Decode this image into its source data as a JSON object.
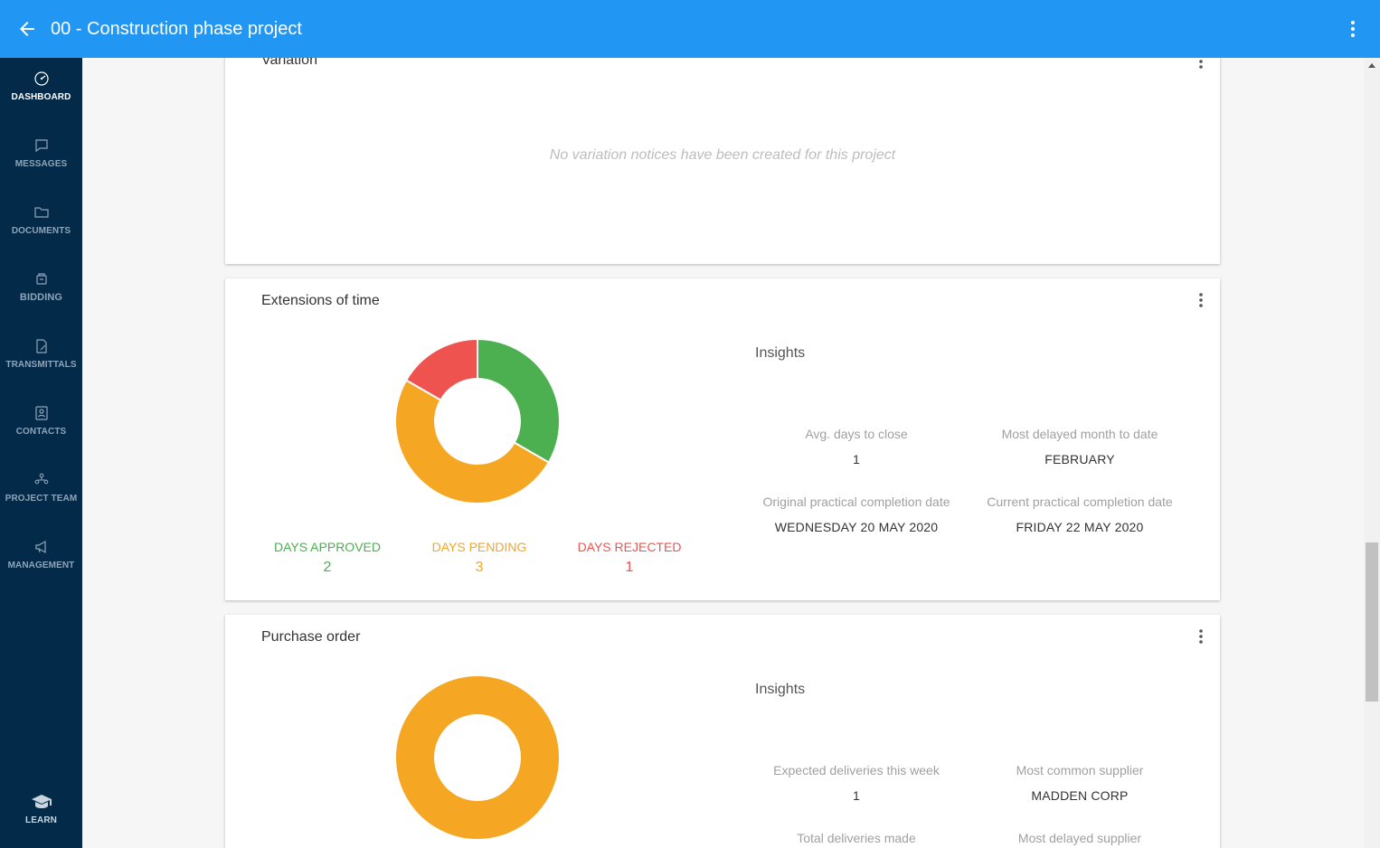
{
  "header": {
    "title": "00 - Construction phase project"
  },
  "colors": {
    "primary": "#2196f3",
    "sidebar": "#042a49",
    "approved": "#4caf50",
    "pending": "#f5a623",
    "rejected": "#ef5350"
  },
  "sidebar": {
    "items": [
      {
        "label": "DASHBOARD",
        "icon": "dashboard-gauge-icon"
      },
      {
        "label": "MESSAGES",
        "icon": "message-icon"
      },
      {
        "label": "DOCUMENTS",
        "icon": "folder-icon"
      },
      {
        "label": "BIDDING",
        "icon": "bidding-icon"
      },
      {
        "label": "TRANSMITTALS",
        "icon": "transmittal-icon"
      },
      {
        "label": "CONTACTS",
        "icon": "contacts-icon"
      },
      {
        "label": "PROJECT TEAM",
        "icon": "team-icon"
      },
      {
        "label": "MANAGEMENT",
        "icon": "megaphone-icon"
      }
    ],
    "learn": {
      "label": "LEARN",
      "icon": "graduation-cap-icon"
    }
  },
  "variation": {
    "title": "Variation",
    "empty_text": "No variation notices have been created for this project"
  },
  "eot": {
    "title": "Extensions of time",
    "insights_title": "Insights",
    "legend": [
      {
        "label": "DAYS APPROVED",
        "value": "2"
      },
      {
        "label": "DAYS PENDING",
        "value": "3"
      },
      {
        "label": "DAYS REJECTED",
        "value": "1"
      }
    ],
    "stats": [
      {
        "label": "Avg. days to close",
        "value": "1"
      },
      {
        "label": "Most delayed month to date",
        "value": "FEBRUARY"
      },
      {
        "label": "Original practical completion date",
        "value": "WEDNESDAY 20 MAY 2020"
      },
      {
        "label": "Current practical completion date",
        "value": "FRIDAY 22 MAY 2020"
      }
    ]
  },
  "purchase_order": {
    "title": "Purchase order",
    "insights_title": "Insights",
    "stats": [
      {
        "label": "Expected deliveries this week",
        "value": "1"
      },
      {
        "label": "Most common supplier",
        "value": "MADDEN CORP"
      },
      {
        "label": "Total deliveries made",
        "value": ""
      },
      {
        "label": "Most delayed supplier",
        "value": ""
      }
    ]
  },
  "chart_data": [
    {
      "type": "pie",
      "categories": [
        "DAYS APPROVED",
        "DAYS PENDING",
        "DAYS REJECTED"
      ],
      "values": [
        2,
        3,
        1
      ],
      "colors": [
        "#4caf50",
        "#f5a623",
        "#ef5350"
      ],
      "title": "Extensions of time"
    },
    {
      "type": "pie",
      "categories": [
        ""
      ],
      "values": [
        1
      ],
      "colors": [
        "#f5a623"
      ],
      "title": "Purchase order"
    }
  ]
}
